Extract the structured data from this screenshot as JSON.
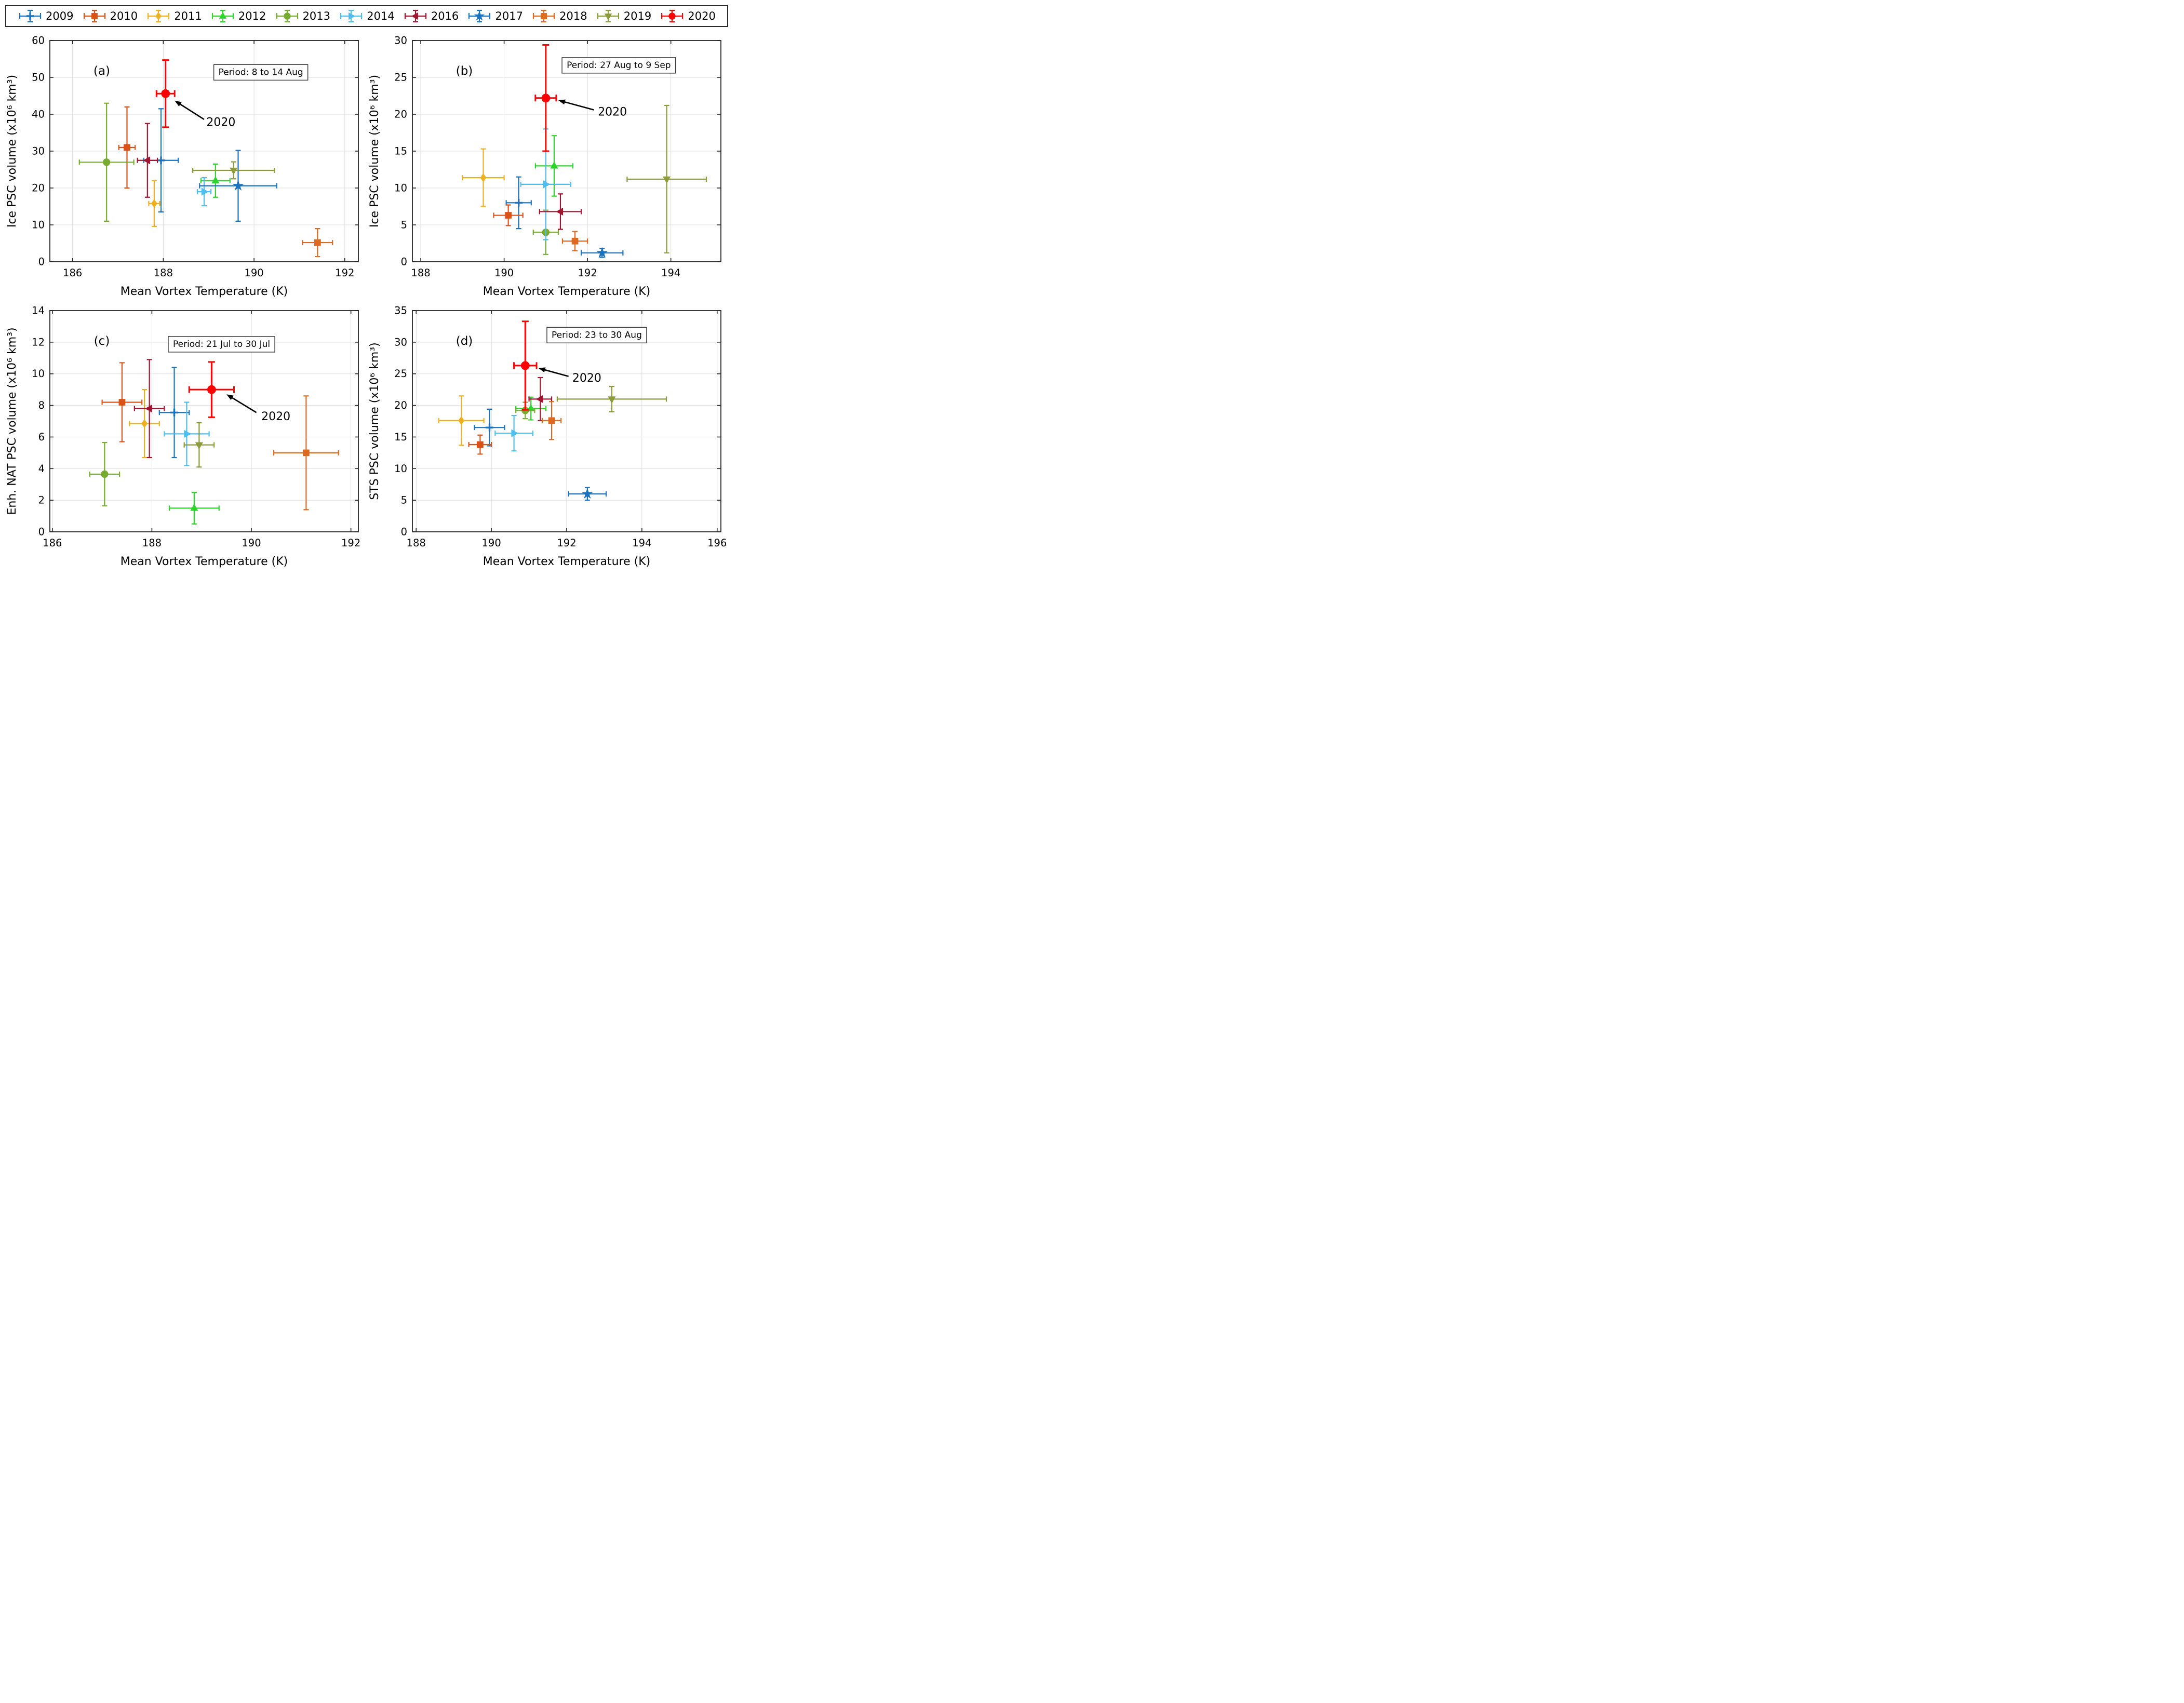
{
  "legend": {
    "items": [
      {
        "year": "2009",
        "color": "#1A73BE",
        "marker": "plus"
      },
      {
        "year": "2010",
        "color": "#D95319",
        "marker": "square"
      },
      {
        "year": "2011",
        "color": "#EDB120",
        "marker": "diamond"
      },
      {
        "year": "2012",
        "color": "#2CD42C",
        "marker": "triangle-up"
      },
      {
        "year": "2013",
        "color": "#77AC30",
        "marker": "circle"
      },
      {
        "year": "2014",
        "color": "#4DBEEE",
        "marker": "triangle-right"
      },
      {
        "year": "2016",
        "color": "#A2142F",
        "marker": "triangle-left"
      },
      {
        "year": "2017",
        "color": "#1A73BE",
        "marker": "star"
      },
      {
        "year": "2018",
        "color": "#DE6921",
        "marker": "square"
      },
      {
        "year": "2019",
        "color": "#8D9B3B",
        "marker": "triangle-down"
      },
      {
        "year": "2020",
        "color": "#FF0000",
        "marker": "circle"
      }
    ]
  },
  "chart_data": [
    {
      "id": "a",
      "type": "scatter",
      "panel_label": "(a)",
      "period_label": "Period: 8 to 14 Aug",
      "xlabel": "Mean Vortex Temperature (K)",
      "ylabel": "Ice PSC volume (x10⁶ km³)",
      "xlim": [
        185.5,
        192.3
      ],
      "xticks": [
        186,
        188,
        190,
        192
      ],
      "ylim": [
        0,
        60
      ],
      "yticks": [
        0,
        10,
        20,
        30,
        40,
        50,
        60
      ],
      "grid": true,
      "period_box": {
        "x": 190.15,
        "y": 51.5
      },
      "annotation": {
        "text": "2020",
        "text_x": 188.95,
        "text_y": 37.8,
        "arrow_from_x": 188.9,
        "arrow_from_y": 38.6,
        "arrow_to_x": 188.25,
        "arrow_to_y": 43.7
      },
      "points": [
        {
          "year": "2009",
          "x": 187.95,
          "y": 27.5,
          "xerr": 0.38,
          "yerr": 14.0
        },
        {
          "year": "2010",
          "x": 187.2,
          "y": 31.0,
          "xerr": 0.18,
          "yerr": 11.0
        },
        {
          "year": "2011",
          "x": 187.8,
          "y": 15.8,
          "xerr": 0.12,
          "yerr": 6.2
        },
        {
          "year": "2012",
          "x": 189.15,
          "y": 22.0,
          "xerr": 0.32,
          "yerr": 4.5
        },
        {
          "year": "2013",
          "x": 186.75,
          "y": 27.0,
          "xerr": 0.6,
          "yerr": 16.0
        },
        {
          "year": "2014",
          "x": 188.9,
          "y": 19.0,
          "xerr": 0.15,
          "yerr": 3.8
        },
        {
          "year": "2016",
          "x": 187.65,
          "y": 27.5,
          "xerr": 0.22,
          "yerr": 10.0
        },
        {
          "year": "2017",
          "x": 189.65,
          "y": 20.6,
          "xerr": 0.85,
          "yerr": 9.6
        },
        {
          "year": "2018",
          "x": 191.4,
          "y": 5.2,
          "xerr": 0.33,
          "yerr": 3.8
        },
        {
          "year": "2019",
          "x": 189.55,
          "y": 24.8,
          "xerr": 0.9,
          "yerr": 2.3
        },
        {
          "year": "2020",
          "x": 188.05,
          "y": 45.6,
          "xerr": 0.2,
          "yerr": 9.1
        }
      ]
    },
    {
      "id": "b",
      "type": "scatter",
      "panel_label": "(b)",
      "period_label": "Period: 27 Aug to 9 Sep",
      "xlabel": "Mean Vortex Temperature (K)",
      "ylabel": "Ice PSC volume (x10⁶ km³)",
      "xlim": [
        187.8,
        195.2
      ],
      "xticks": [
        188,
        190,
        192,
        194
      ],
      "ylim": [
        0,
        30
      ],
      "yticks": [
        0,
        5,
        10,
        15,
        20,
        25,
        30
      ],
      "grid": true,
      "period_box": {
        "x": 192.75,
        "y": 26.7
      },
      "annotation": {
        "text": "2020",
        "text_x": 192.25,
        "text_y": 20.3,
        "arrow_from_x": 192.15,
        "arrow_from_y": 20.6,
        "arrow_to_x": 191.3,
        "arrow_to_y": 21.9
      },
      "points": [
        {
          "year": "2009",
          "x": 190.35,
          "y": 8.0,
          "xerr": 0.3,
          "yerr": 3.5
        },
        {
          "year": "2010",
          "x": 190.1,
          "y": 6.3,
          "xerr": 0.35,
          "yerr": 1.4
        },
        {
          "year": "2011",
          "x": 189.5,
          "y": 11.4,
          "xerr": 0.5,
          "yerr": 3.9
        },
        {
          "year": "2012",
          "x": 191.2,
          "y": 13.0,
          "xerr": 0.45,
          "yerr": 4.1
        },
        {
          "year": "2013",
          "x": 191.0,
          "y": 4.0,
          "xerr": 0.3,
          "yerr": 3.0
        },
        {
          "year": "2014",
          "x": 191.0,
          "y": 10.5,
          "xerr": 0.6,
          "yerr": 7.5
        },
        {
          "year": "2016",
          "x": 191.35,
          "y": 6.8,
          "xerr": 0.5,
          "yerr": 2.4
        },
        {
          "year": "2017",
          "x": 192.35,
          "y": 1.2,
          "xerr": 0.5,
          "yerr": 0.6
        },
        {
          "year": "2018",
          "x": 191.7,
          "y": 2.8,
          "xerr": 0.3,
          "yerr": 1.3
        },
        {
          "year": "2019",
          "x": 193.9,
          "y": 11.2,
          "xerr": 0.95,
          "yerr": 10.0
        },
        {
          "year": "2020",
          "x": 191.0,
          "y": 22.2,
          "xerr": 0.25,
          "yerr": 7.2
        }
      ]
    },
    {
      "id": "c",
      "type": "scatter",
      "panel_label": "(c)",
      "period_label": "Period: 21 Jul to 30 Jul",
      "xlabel": "Mean Vortex Temperature (K)",
      "ylabel": "Enh. NAT PSC volume (x10⁶ km³)",
      "xlim": [
        185.95,
        192.15
      ],
      "xticks": [
        186,
        188,
        190,
        192
      ],
      "ylim": [
        0,
        14
      ],
      "yticks": [
        0,
        2,
        4,
        6,
        8,
        10,
        12,
        14
      ],
      "grid": true,
      "period_box": {
        "x": 189.4,
        "y": 11.9
      },
      "annotation": {
        "text": "2020",
        "text_x": 190.2,
        "text_y": 7.3,
        "arrow_from_x": 190.1,
        "arrow_from_y": 7.55,
        "arrow_to_x": 189.5,
        "arrow_to_y": 8.7
      },
      "points": [
        {
          "year": "2009",
          "x": 188.45,
          "y": 7.55,
          "xerr": 0.3,
          "yerr": 2.85
        },
        {
          "year": "2010",
          "x": 187.4,
          "y": 8.2,
          "xerr": 0.4,
          "yerr": 2.5
        },
        {
          "year": "2011",
          "x": 187.85,
          "y": 6.85,
          "xerr": 0.3,
          "yerr": 2.15
        },
        {
          "year": "2012",
          "x": 188.85,
          "y": 1.5,
          "xerr": 0.5,
          "yerr": 1.0
        },
        {
          "year": "2013",
          "x": 187.05,
          "y": 3.65,
          "xerr": 0.3,
          "yerr": 2.0
        },
        {
          "year": "2014",
          "x": 188.7,
          "y": 6.2,
          "xerr": 0.45,
          "yerr": 2.0
        },
        {
          "year": "2016",
          "x": 187.95,
          "y": 7.8,
          "xerr": 0.3,
          "yerr": 3.1
        },
        {
          "year": "2018",
          "x": 191.1,
          "y": 5.0,
          "xerr": 0.65,
          "yerr": 3.6
        },
        {
          "year": "2019",
          "x": 188.95,
          "y": 5.5,
          "xerr": 0.3,
          "yerr": 1.4
        },
        {
          "year": "2020",
          "x": 189.2,
          "y": 9.0,
          "xerr": 0.45,
          "yerr": 1.75
        }
      ]
    },
    {
      "id": "d",
      "type": "scatter",
      "panel_label": "(d)",
      "period_label": "Period: 23 to 30 Aug",
      "xlabel": "Mean Vortex Temperature (K)",
      "ylabel": "STS PSC volume (x10⁶ km³)",
      "xlim": [
        187.9,
        196.1
      ],
      "xticks": [
        188,
        190,
        192,
        194,
        196
      ],
      "ylim": [
        0,
        35
      ],
      "yticks": [
        0,
        5,
        10,
        15,
        20,
        25,
        30,
        35
      ],
      "grid": true,
      "period_box": {
        "x": 192.8,
        "y": 31.2
      },
      "annotation": {
        "text": "2020",
        "text_x": 192.15,
        "text_y": 24.3,
        "arrow_from_x": 192.05,
        "arrow_from_y": 24.6,
        "arrow_to_x": 191.25,
        "arrow_to_y": 25.9
      },
      "points": [
        {
          "year": "2009",
          "x": 189.95,
          "y": 16.5,
          "xerr": 0.4,
          "yerr": 2.9
        },
        {
          "year": "2010",
          "x": 189.7,
          "y": 13.8,
          "xerr": 0.3,
          "yerr": 1.5
        },
        {
          "year": "2011",
          "x": 189.2,
          "y": 17.6,
          "xerr": 0.6,
          "yerr": 3.9
        },
        {
          "year": "2012",
          "x": 191.05,
          "y": 19.5,
          "xerr": 0.4,
          "yerr": 1.8
        },
        {
          "year": "2013",
          "x": 190.9,
          "y": 19.2,
          "xerr": 0.25,
          "yerr": 1.3
        },
        {
          "year": "2014",
          "x": 190.6,
          "y": 15.6,
          "xerr": 0.5,
          "yerr": 2.8
        },
        {
          "year": "2016",
          "x": 191.3,
          "y": 21.0,
          "xerr": 0.3,
          "yerr": 3.4
        },
        {
          "year": "2017",
          "x": 192.55,
          "y": 6.0,
          "xerr": 0.5,
          "yerr": 1.0
        },
        {
          "year": "2018",
          "x": 191.6,
          "y": 17.6,
          "xerr": 0.25,
          "yerr": 3.0
        },
        {
          "year": "2019",
          "x": 193.2,
          "y": 21.0,
          "xerr": 1.45,
          "yerr": 2.0
        },
        {
          "year": "2020",
          "x": 190.9,
          "y": 26.3,
          "xerr": 0.3,
          "yerr": 7.0
        }
      ]
    }
  ]
}
